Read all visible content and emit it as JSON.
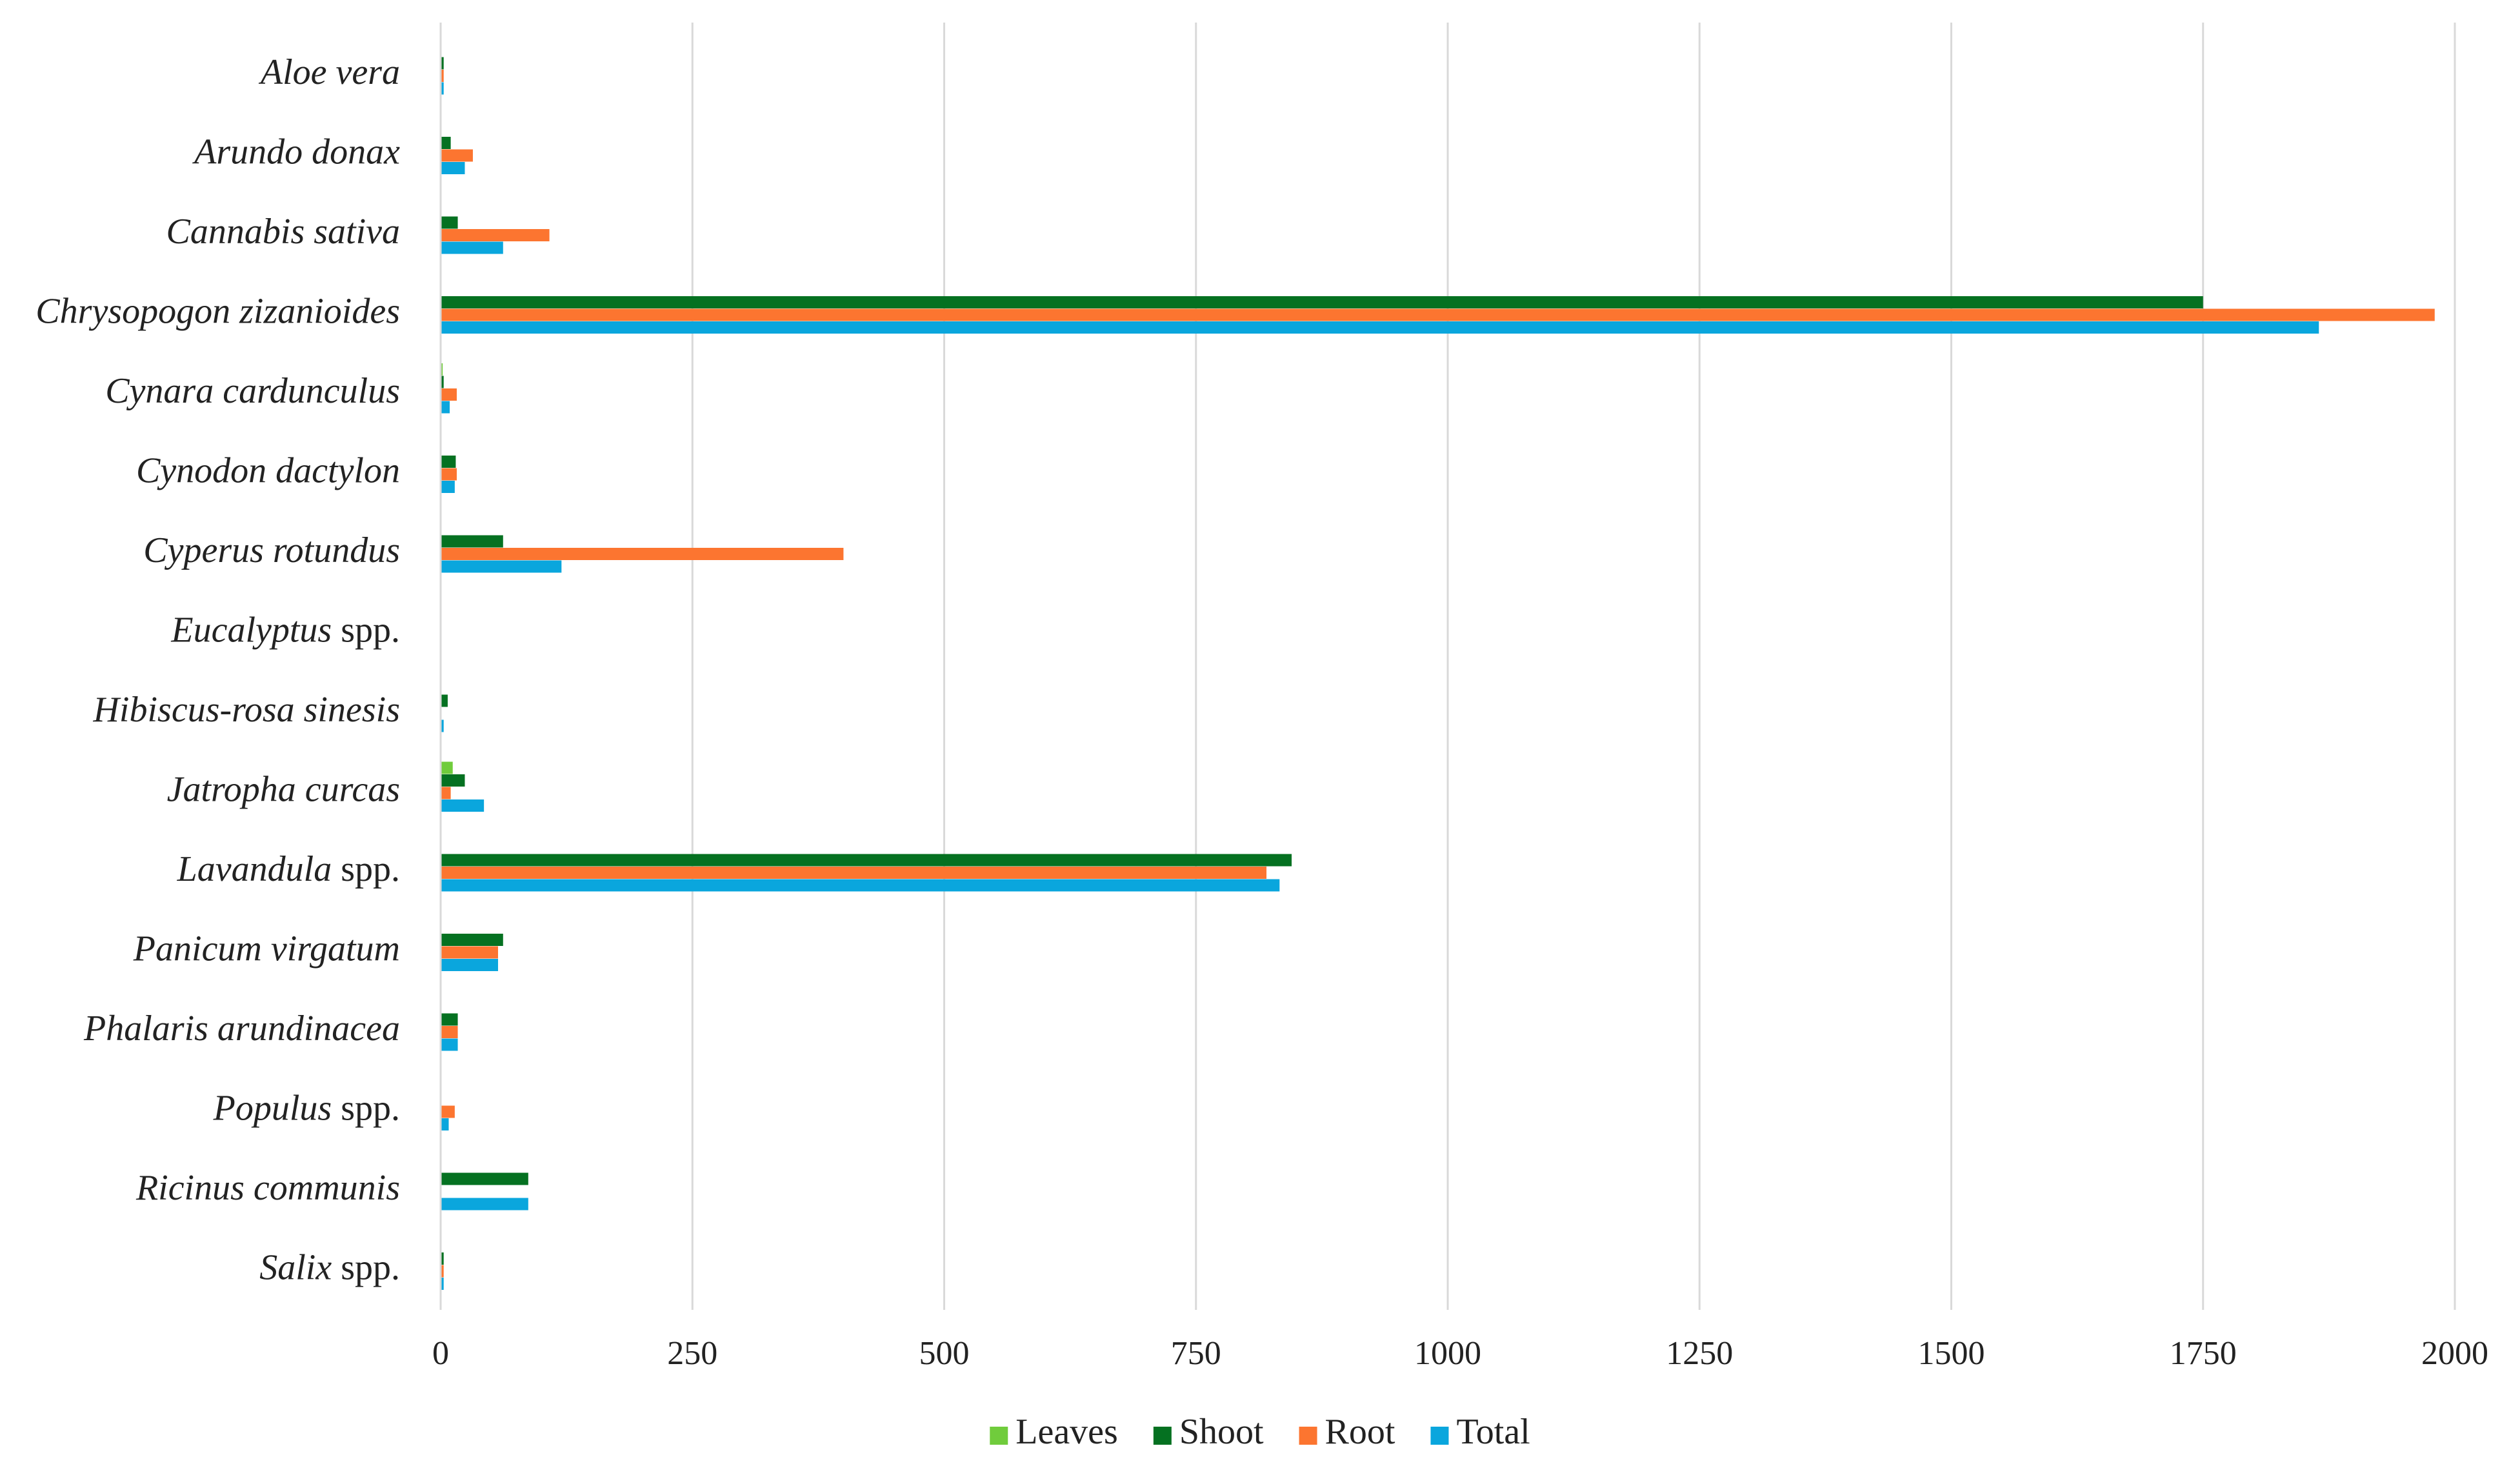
{
  "chart_data": {
    "type": "bar",
    "orientation": "horizontal",
    "title": "",
    "xlabel": "",
    "ylabel": "",
    "xlim": [
      0,
      2000
    ],
    "x_ticks": [
      0,
      250,
      500,
      750,
      1000,
      1250,
      1500,
      1750,
      2000
    ],
    "x_tick_labels": [
      "0",
      "250",
      "500",
      "750",
      "1000",
      "1250",
      "1500",
      "1750",
      "2000"
    ],
    "grid": "vertical",
    "legend_position": "bottom",
    "categories": [
      {
        "name": "Aloe vera",
        "italic": "Aloe vera",
        "suffix": ""
      },
      {
        "name": "Arundo donax",
        "italic": "Arundo donax",
        "suffix": ""
      },
      {
        "name": "Cannabis sativa",
        "italic": "Cannabis sativa",
        "suffix": ""
      },
      {
        "name": "Chrysopogon zizanioides",
        "italic": "Chrysopogon zizanioides",
        "suffix": ""
      },
      {
        "name": "Cynara cardunculus",
        "italic": "Cynara cardunculus",
        "suffix": ""
      },
      {
        "name": "Cynodon dactylon",
        "italic": "Cynodon dactylon",
        "suffix": ""
      },
      {
        "name": "Cyperus rotundus",
        "italic": "Cyperus rotundus",
        "suffix": ""
      },
      {
        "name": "Eucalyptus spp.",
        "italic": "Eucalyptus",
        "suffix": " spp."
      },
      {
        "name": "Hibiscus-rosa sinesis",
        "italic": "Hibiscus-rosa sinesis",
        "suffix": ""
      },
      {
        "name": "Jatropha curcas",
        "italic": "Jatropha curcas",
        "suffix": ""
      },
      {
        "name": "Lavandula spp.",
        "italic": "Lavandula",
        "suffix": " spp."
      },
      {
        "name": "Panicum virgatum",
        "italic": "Panicum virgatum",
        "suffix": ""
      },
      {
        "name": "Phalaris arundinacea",
        "italic": "Phalaris arundinacea",
        "suffix": ""
      },
      {
        "name": "Populus spp.",
        "italic": "Populus",
        "suffix": " spp."
      },
      {
        "name": "Ricinus communis",
        "italic": "Ricinus communis",
        "suffix": ""
      },
      {
        "name": "Salix spp.",
        "italic": "Salix",
        "suffix": " spp."
      }
    ],
    "series": [
      {
        "name": "Leaves",
        "color": "#70cc3c",
        "values": [
          0,
          0,
          0,
          0,
          2,
          0,
          0,
          0,
          0,
          12,
          0,
          0,
          0,
          0,
          0,
          0
        ]
      },
      {
        "name": "Shoot",
        "color": "#057121",
        "values": [
          3,
          10,
          17,
          1750,
          3,
          15,
          62,
          0,
          7,
          24,
          845,
          62,
          17,
          0,
          87,
          3
        ]
      },
      {
        "name": "Root",
        "color": "#fc7530",
        "values": [
          3,
          32,
          108,
          1980,
          16,
          16,
          400,
          0,
          0,
          10,
          820,
          57,
          17,
          14,
          0,
          3
        ]
      },
      {
        "name": "Total",
        "color": "#0aa6dd",
        "values": [
          3,
          24,
          62,
          1865,
          9,
          14,
          120,
          0,
          3,
          43,
          833,
          57,
          17,
          8,
          87,
          3
        ]
      }
    ]
  }
}
